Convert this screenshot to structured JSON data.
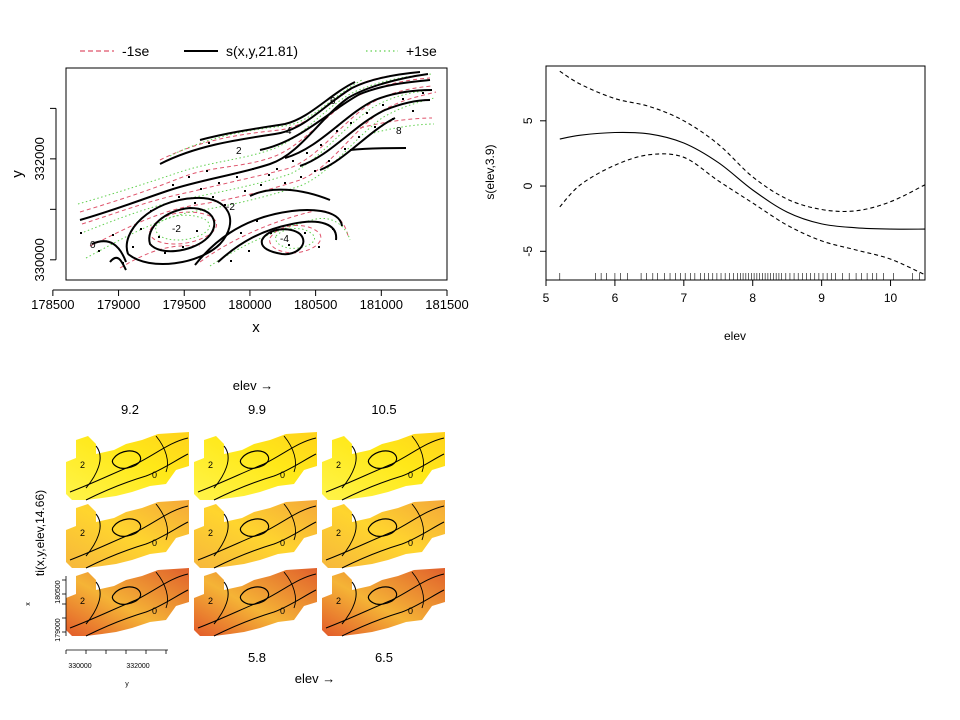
{
  "chart_data": [
    {
      "type": "line",
      "kind": "contour",
      "xlabel": "x",
      "ylabel": "y",
      "x_ticks": [
        "178500",
        "179000",
        "179500",
        "180000",
        "180500",
        "181000",
        "181500"
      ],
      "y_ticks": [
        "330000",
        "332000"
      ],
      "xlim": [
        178600,
        181500
      ],
      "ylim": [
        329600,
        333800
      ],
      "legend": {
        "position": "top",
        "entries": [
          {
            "label": "-1se",
            "color": "#DF536B",
            "style": "dashed"
          },
          {
            "label": "s(x,y,21.81)",
            "color": "#000000",
            "style": "solid"
          },
          {
            "label": "+1se",
            "color": "#61D04F",
            "style": "dotted"
          }
        ]
      },
      "contour_level_labels": [
        "-2",
        "0",
        "2",
        "4",
        "-4",
        "6",
        "8"
      ]
    },
    {
      "type": "line",
      "xlabel": "elev",
      "ylabel": "s(elev,3.9)",
      "xlim": [
        5,
        10.5
      ],
      "ylim": [
        -7.2,
        9.2
      ],
      "x_ticks": [
        "5",
        "6",
        "7",
        "8",
        "9",
        "10"
      ],
      "y_ticks": [
        "-5",
        "0",
        "5"
      ],
      "x": [
        5.2,
        5.5,
        6.0,
        6.5,
        7.0,
        7.5,
        8.0,
        8.5,
        9.0,
        9.5,
        10.0,
        10.5
      ],
      "series": [
        {
          "style": "solid",
          "values": [
            3.6,
            3.9,
            4.1,
            4.0,
            3.3,
            1.8,
            -0.3,
            -2.0,
            -2.9,
            -3.2,
            -3.3,
            -3.3
          ]
        },
        {
          "style": "dashed",
          "values": [
            8.8,
            7.8,
            6.7,
            6.1,
            5.0,
            3.2,
            0.7,
            -1.0,
            -1.8,
            -1.9,
            -1.2,
            0.1
          ]
        },
        {
          "style": "dashed",
          "values": [
            -1.6,
            0.1,
            1.6,
            2.4,
            2.2,
            0.4,
            -1.3,
            -3.0,
            -4.2,
            -4.9,
            -5.6,
            -6.8
          ]
        }
      ],
      "rug_elev": [
        5.2,
        5.72,
        5.8,
        5.88,
        6.0,
        6.08,
        6.18,
        6.38,
        6.46,
        6.55,
        6.62,
        6.72,
        6.8,
        6.88,
        6.95,
        7.02,
        7.1,
        7.16,
        7.24,
        7.3,
        7.36,
        7.42,
        7.48,
        7.54,
        7.6,
        7.66,
        7.72,
        7.78,
        7.82,
        7.86,
        7.9,
        7.94,
        7.98,
        8.02,
        8.06,
        8.1,
        8.14,
        8.18,
        8.22,
        8.26,
        8.3,
        8.34,
        8.38,
        8.42,
        8.48,
        8.54,
        8.6,
        8.66,
        8.72,
        8.78,
        8.84,
        8.9,
        8.96,
        9.02,
        9.08,
        9.14,
        9.2,
        9.3,
        9.4,
        9.5,
        9.58,
        9.66,
        9.74,
        9.8,
        9.9,
        10.04,
        10.32,
        10.42,
        10.5
      ]
    },
    {
      "type": "heatmap",
      "ylabel": "ti(x,y,elev,14.66)",
      "top_axis_label": "elev →",
      "bottom_axis_label": "elev →",
      "panel_labels_top": [
        "9.2",
        "9.9",
        "10.5"
      ],
      "panel_labels_bottom": [
        "5.8",
        "6.5"
      ],
      "inset_xlabel": "y",
      "inset_ylabel": "x",
      "inset_x_ticks": [
        "330000",
        "332000"
      ],
      "inset_y_ticks": [
        "179000",
        "180500"
      ],
      "panels": [
        {
          "row": 0,
          "col": 0,
          "level": 0.15
        },
        {
          "row": 0,
          "col": 1,
          "level": 0.15
        },
        {
          "row": 0,
          "col": 2,
          "level": 0.15
        },
        {
          "row": 1,
          "col": 0,
          "level": 0.4
        },
        {
          "row": 1,
          "col": 1,
          "level": 0.3
        },
        {
          "row": 1,
          "col": 2,
          "level": 0.45
        },
        {
          "row": 2,
          "col": 0,
          "level": 0.65
        },
        {
          "row": 2,
          "col": 1,
          "level": 0.65
        },
        {
          "row": 2,
          "col": 2,
          "level": 0.7
        }
      ]
    }
  ]
}
